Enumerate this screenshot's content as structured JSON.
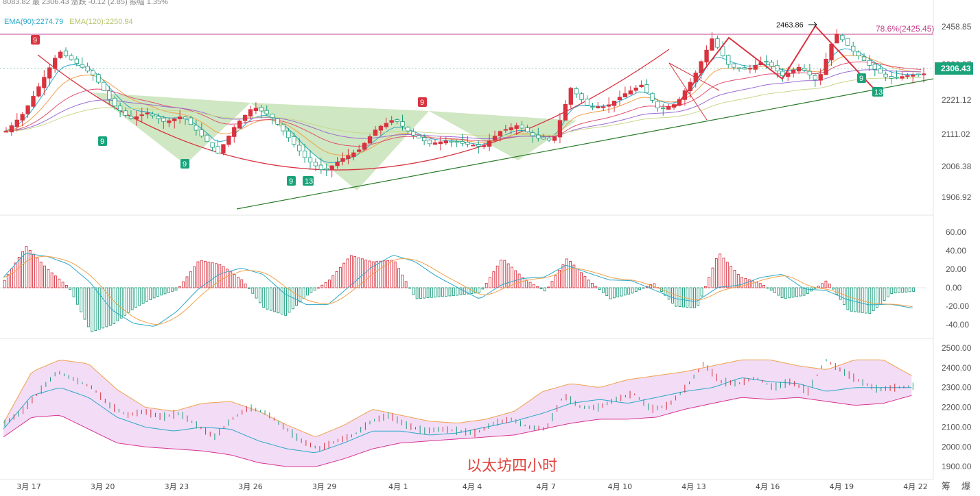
{
  "header": {
    "top_text": "8083.82  最 2306.43  涨跌 -0.12  (2.85)  振幅 1.35%"
  },
  "legend": {
    "ema90_label": "EMA(90):2274.79",
    "ema120_label": "EMA(120):2250.94",
    "ema90_color": "#2aa8c8",
    "ema120_color": "#c8d88a"
  },
  "annotations": {
    "high_label": "2463.86",
    "fib_label": "78.6%(2425.45)",
    "fib_color": "#c5418c",
    "price_tag": "2306.43",
    "price_tag_color": "#1aa37a",
    "td_labels": [
      {
        "text": "9",
        "kind": "sell"
      },
      {
        "text": "9",
        "kind": "buy"
      },
      {
        "text": "9",
        "kind": "buy"
      },
      {
        "text": "9",
        "kind": "buy"
      },
      {
        "text": "13",
        "kind": "buy"
      },
      {
        "text": "9",
        "kind": "sell"
      },
      {
        "text": "9",
        "kind": "buy"
      },
      {
        "text": "13",
        "kind": "buy"
      }
    ]
  },
  "watermark": "以太坊四小时",
  "corner_text": "筹 爆",
  "chart_data": [
    {
      "type": "candlestick",
      "title": "",
      "x_tick_labels": [
        "3月 17",
        "3月 20",
        "3月 23",
        "3月 26",
        "3月 29",
        "4月 1",
        "4月 4",
        "4月 7",
        "4月 10",
        "4月 13",
        "4月 16",
        "4月 19",
        "4月 22"
      ],
      "y_tick_labels": [
        "2458.85",
        "2336.97",
        "2221.12",
        "2111.02",
        "2006.38",
        "1906.92"
      ],
      "ylim": [
        1880,
        2490
      ],
      "approx_close_path": [
        2120,
        2180,
        2280,
        2380,
        2340,
        2300,
        2210,
        2160,
        2180,
        2150,
        2170,
        2110,
        2050,
        2140,
        2200,
        2170,
        2100,
        2030,
        1990,
        2030,
        2060,
        2130,
        2160,
        2110,
        2080,
        2090,
        2080,
        2070,
        2120,
        2140,
        2100,
        2090,
        2260,
        2200,
        2200,
        2240,
        2270,
        2190,
        2210,
        2300,
        2420,
        2330,
        2320,
        2350,
        2300,
        2330,
        2280,
        2440,
        2380,
        2330,
        2290,
        2300,
        2306.43
      ],
      "series": [
        {
          "name": "EMA(90)",
          "value": 2274.79
        },
        {
          "name": "EMA(120)",
          "value": 2250.94
        }
      ],
      "high": 2463.86,
      "fib_level": 2425.45,
      "last_price": 2306.43,
      "grid": false
    },
    {
      "type": "bar",
      "title": "",
      "y_tick_labels": [
        "60.00",
        "40.00",
        "20.00",
        "0.00",
        "-20.00",
        "-40.00"
      ],
      "ylim": [
        -55,
        72
      ],
      "approx_histogram": [
        8,
        45,
        20,
        0,
        -48,
        -40,
        -22,
        -10,
        -2,
        30,
        25,
        8,
        -22,
        -30,
        -8,
        8,
        35,
        28,
        30,
        -12,
        -10,
        -8,
        -5,
        32,
        10,
        -4,
        32,
        8,
        -12,
        -6,
        5,
        -20,
        -22,
        38,
        12,
        4,
        -12,
        -8,
        8,
        -25,
        -28,
        -6,
        -4
      ]
    },
    {
      "type": "line",
      "title": "",
      "y_tick_labels": [
        "2500.00",
        "2400.00",
        "2300.00",
        "2200.00",
        "2100.00",
        "2000.00",
        "1900.00"
      ],
      "ylim": [
        1880,
        2510
      ],
      "series": [
        {
          "name": "",
          "values": [
            2120,
            2380,
            2440,
            2420,
            2290,
            2200,
            2180,
            2220,
            2230,
            2180,
            2110,
            2050,
            2110,
            2190,
            2160,
            2130,
            2120,
            2140,
            2180,
            2280,
            2320,
            2300,
            2340,
            2360,
            2380,
            2410,
            2440,
            2440,
            2410,
            2390,
            2440,
            2440,
            2360
          ]
        },
        {
          "name": "",
          "values": [
            2090,
            2260,
            2300,
            2250,
            2150,
            2100,
            2080,
            2100,
            2090,
            2030,
            1990,
            1970,
            2020,
            2080,
            2080,
            2060,
            2070,
            2100,
            2130,
            2170,
            2220,
            2240,
            2220,
            2250,
            2280,
            2300,
            2350,
            2330,
            2320,
            2280,
            2300,
            2300,
            2300
          ]
        },
        {
          "name": "",
          "values": [
            2050,
            2150,
            2160,
            2090,
            2020,
            2000,
            1990,
            1980,
            1960,
            1920,
            1900,
            1900,
            1940,
            1990,
            2020,
            2030,
            2040,
            2050,
            2060,
            2090,
            2120,
            2140,
            2140,
            2150,
            2190,
            2220,
            2250,
            2240,
            2250,
            2230,
            2210,
            2220,
            2260
          ]
        }
      ]
    }
  ]
}
